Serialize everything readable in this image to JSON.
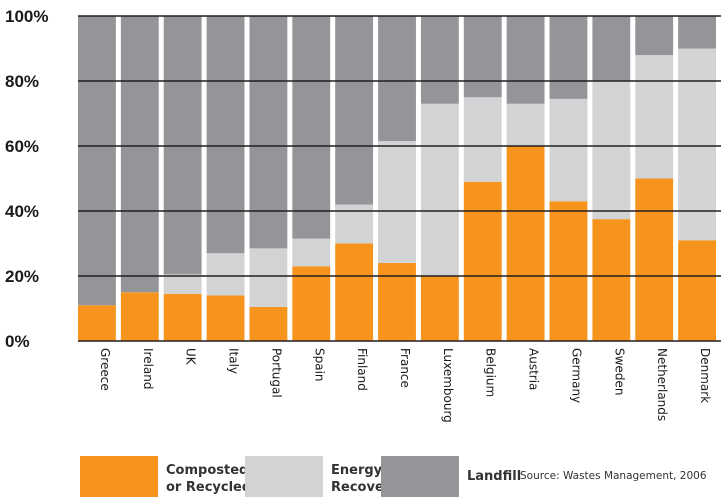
{
  "chart_data": {
    "type": "bar",
    "stacked": true,
    "categories": [
      "Greece",
      "Ireland",
      "UK",
      "Italy",
      "Portugal",
      "Spain",
      "Finland",
      "France",
      "Luxembourg",
      "Belgium",
      "Austria",
      "Germany",
      "Sweden",
      "Netherlands",
      "Denmark"
    ],
    "series": [
      {
        "name": "Composted or Recycled",
        "color": "#f7941d",
        "values": [
          11,
          15,
          14.5,
          14,
          10.5,
          23,
          30,
          24,
          20,
          49,
          60,
          43,
          37.5,
          50,
          31
        ]
      },
      {
        "name": "Energy Recovery",
        "color": "#d1d3d4",
        "values": [
          0,
          0,
          6,
          13,
          18,
          8.5,
          12,
          37.5,
          53,
          26,
          13,
          31.5,
          42.5,
          38,
          59
        ]
      },
      {
        "name": "Landfill",
        "color": "#939598",
        "values": [
          89,
          85,
          79.5,
          73,
          71.5,
          68.5,
          58,
          38.5,
          27,
          25,
          27,
          25.5,
          20,
          12,
          10
        ]
      }
    ],
    "ylim": [
      0,
      100
    ],
    "yticks": [
      "0%",
      "20%",
      "40%",
      "60%",
      "80%",
      "100%"
    ],
    "gridlines": true,
    "legend_position": "bottom",
    "source": "Source: Wastes Management, 2006"
  },
  "legend": {
    "composted": "Composted\nor Recycled",
    "energy": "Energy\nRecovery",
    "landfill": "Landfill"
  }
}
